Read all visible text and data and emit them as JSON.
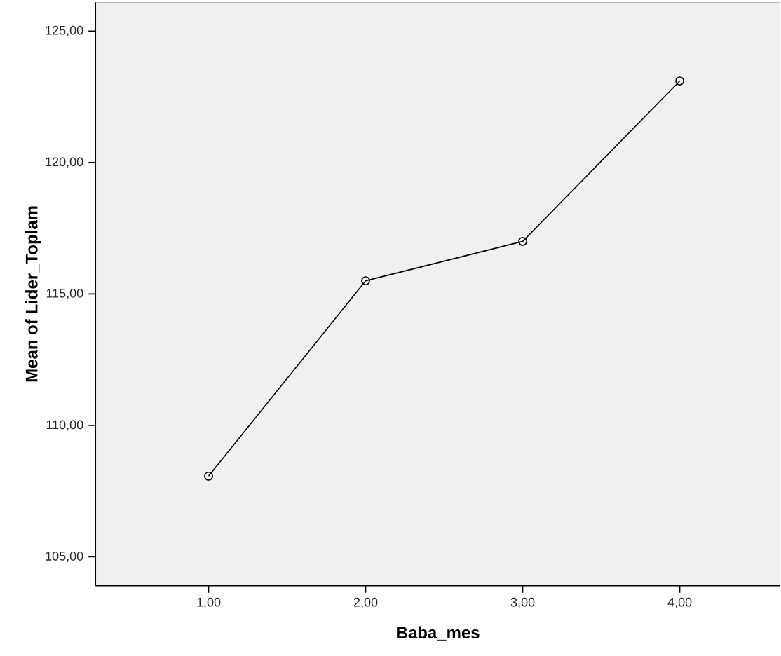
{
  "chart_data": {
    "type": "line",
    "xlabel": "Baba_mes",
    "ylabel": "Mean of Lider_Toplam",
    "categories": [
      "1,00",
      "2,00",
      "3,00",
      "4,00"
    ],
    "values": [
      108.07,
      115.5,
      117.0,
      123.1
    ],
    "color": "#000000",
    "marker": "circle",
    "line_style": "solid",
    "grid": false,
    "ylim": [
      103.9,
      126.1
    ],
    "yticks": [
      {
        "value": 105,
        "label": "105,00"
      },
      {
        "value": 110,
        "label": "110,00"
      },
      {
        "value": 115,
        "label": "115,00"
      },
      {
        "value": 120,
        "label": "120,00"
      },
      {
        "value": 125,
        "label": "125,00"
      }
    ]
  }
}
